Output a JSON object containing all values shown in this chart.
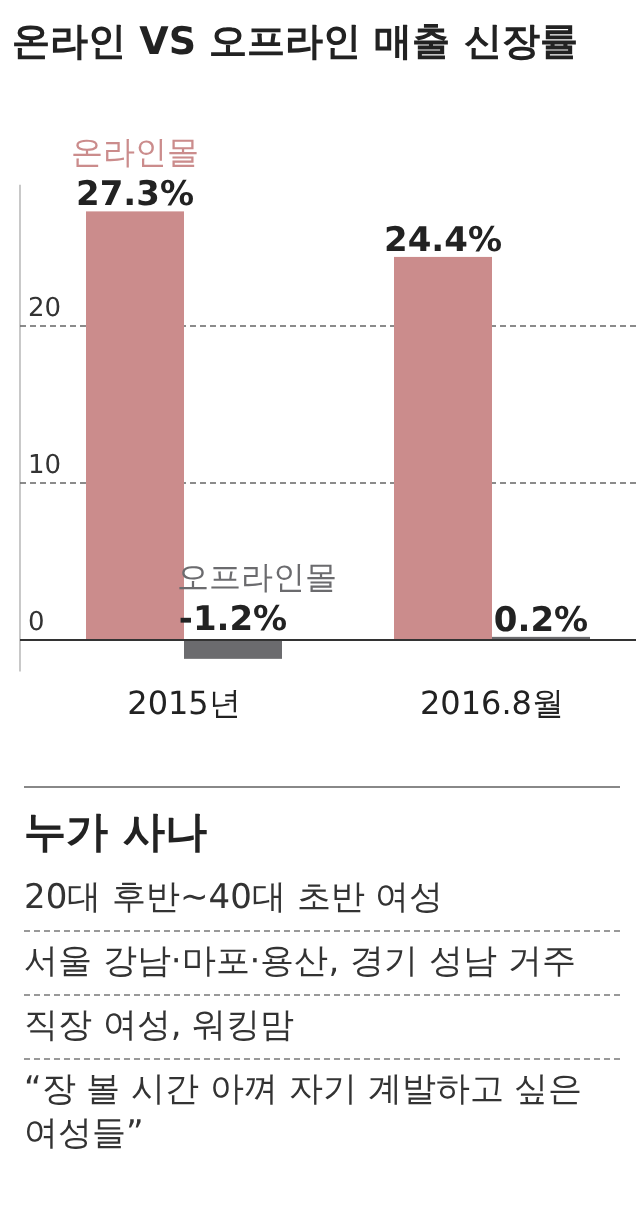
{
  "chart_data": [
    {
      "type": "bar",
      "title": "온라인 VS 오프라인 매출 신장률",
      "categories": [
        "2015년",
        "2016.8월"
      ],
      "series": [
        {
          "name": "온라인몰",
          "color": "#cb8c8c",
          "values": [
            27.3,
            24.4
          ],
          "value_labels": [
            "27.3%",
            "24.4%"
          ]
        },
        {
          "name": "오프라인몰",
          "color": "#6b6b6e",
          "values": [
            -1.2,
            0.2
          ],
          "value_labels": [
            "-1.2%",
            "0.2%"
          ]
        }
      ],
      "ylim": [
        -2,
        29
      ],
      "yticks": [
        0,
        10,
        20
      ],
      "grid": "y"
    },
    {
      "type": "other",
      "title": "누가 사나",
      "annotations": [
        "20대 후반~40대 초반 여성",
        "서울 강남·마포·용산, 경기 성남 거주",
        "직장 여성, 워킹맘",
        "“장 볼 시간 아껴 자기 계발하고 싶은 여성들”"
      ]
    }
  ]
}
